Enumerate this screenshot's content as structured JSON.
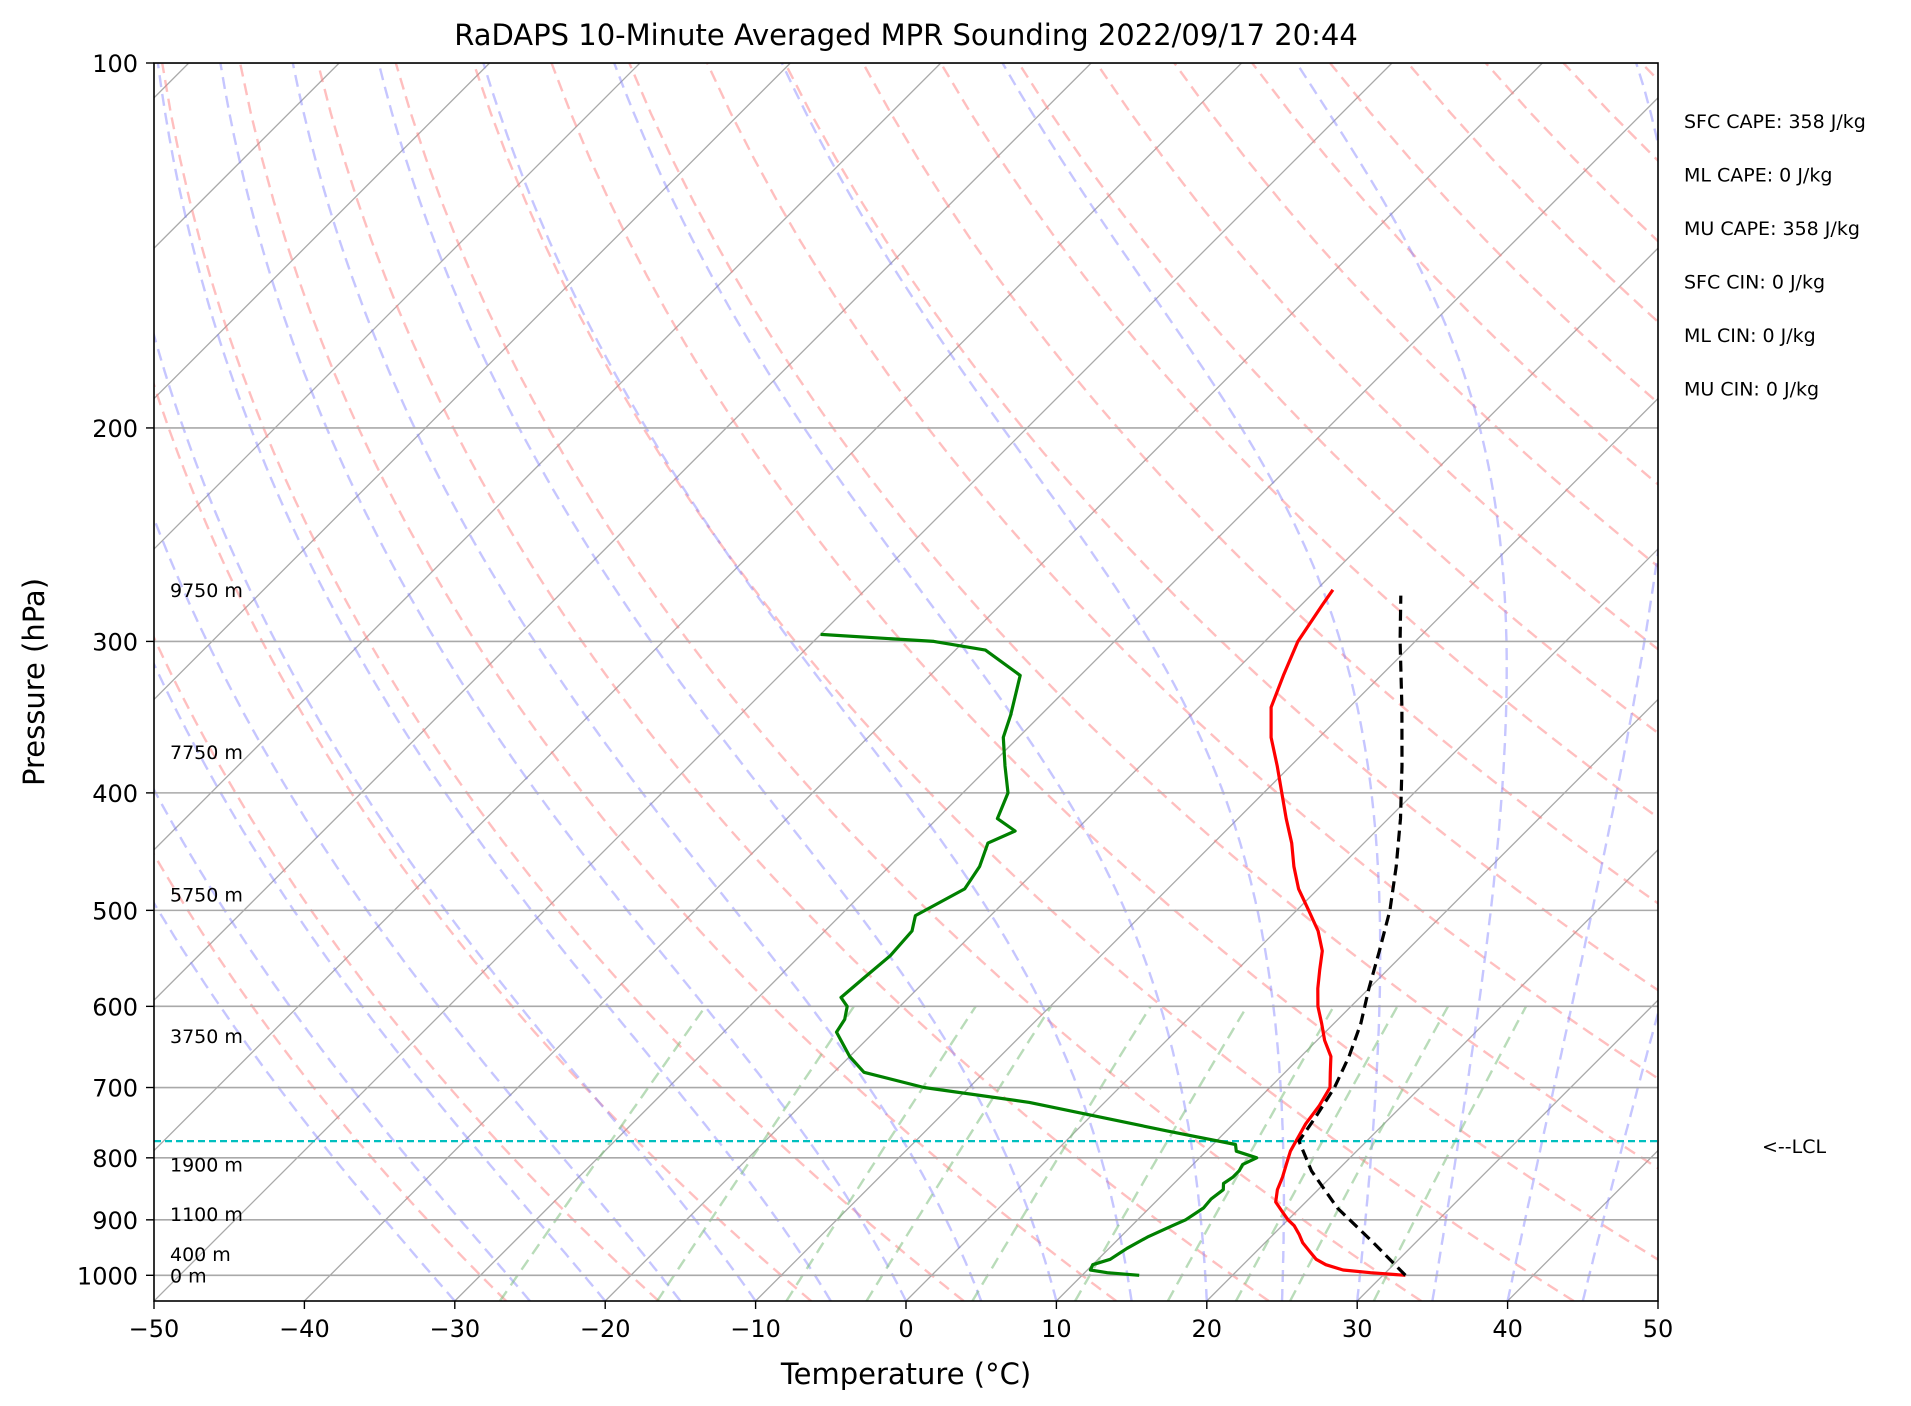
{
  "chart_data": {
    "type": "line",
    "subtype": "skew-t log-p",
    "title": "RaDAPS 10-Minute Averaged MPR Sounding 2022/09/17 20:44",
    "xlabel": "Temperature (°C)",
    "ylabel": "Pressure (hPa)",
    "xlim": [
      -50,
      50
    ],
    "ylim": [
      1050,
      100
    ],
    "yscale": "log",
    "x_ticks": [
      -50,
      -40,
      -30,
      -20,
      -10,
      0,
      10,
      20,
      30,
      40,
      50
    ],
    "y_ticks": [
      100,
      200,
      300,
      400,
      500,
      600,
      700,
      800,
      900,
      1000
    ],
    "grid": true,
    "series": [
      {
        "color": "#ff0000",
        "style": "solid",
        "points": [
          [
            1000,
            31.5
          ],
          [
            995,
            29.0
          ],
          [
            990,
            27.0
          ],
          [
            980,
            25.5
          ],
          [
            970,
            24.5
          ],
          [
            955,
            23.5
          ],
          [
            940,
            22.5
          ],
          [
            925,
            21.7
          ],
          [
            910,
            20.8
          ],
          [
            900,
            20.0
          ],
          [
            885,
            19.0
          ],
          [
            870,
            18.0
          ],
          [
            850,
            17.3
          ],
          [
            830,
            16.8
          ],
          [
            810,
            16.2
          ],
          [
            790,
            15.6
          ],
          [
            775,
            15.3
          ],
          [
            750,
            14.8
          ],
          [
            725,
            14.5
          ],
          [
            700,
            14.0
          ],
          [
            680,
            13.0
          ],
          [
            660,
            12.0
          ],
          [
            640,
            10.5
          ],
          [
            620,
            9.2
          ],
          [
            600,
            7.8
          ],
          [
            580,
            6.6
          ],
          [
            560,
            5.5
          ],
          [
            540,
            4.4
          ],
          [
            520,
            2.8
          ],
          [
            500,
            0.8
          ],
          [
            480,
            -1.3
          ],
          [
            460,
            -3.1
          ],
          [
            440,
            -4.8
          ],
          [
            420,
            -6.8
          ],
          [
            400,
            -8.8
          ],
          [
            380,
            -10.9
          ],
          [
            360,
            -13.2
          ],
          [
            340,
            -15.2
          ],
          [
            320,
            -16.5
          ],
          [
            300,
            -17.8
          ],
          [
            280,
            -18.6
          ],
          [
            272,
            -18.9
          ]
        ]
      },
      {
        "color": "#008000",
        "style": "solid",
        "points": [
          [
            1000,
            13.8
          ],
          [
            995,
            11.5
          ],
          [
            990,
            10.2
          ],
          [
            980,
            10.0
          ],
          [
            970,
            10.8
          ],
          [
            960,
            11.0
          ],
          [
            950,
            11.2
          ],
          [
            930,
            11.8
          ],
          [
            910,
            12.7
          ],
          [
            900,
            13.2
          ],
          [
            880,
            13.6
          ],
          [
            865,
            13.5
          ],
          [
            850,
            13.7
          ],
          [
            840,
            13.3
          ],
          [
            830,
            13.5
          ],
          [
            820,
            13.5
          ],
          [
            810,
            13.3
          ],
          [
            800,
            13.8
          ],
          [
            790,
            12.0
          ],
          [
            780,
            11.5
          ],
          [
            760,
            6.0
          ],
          [
            720,
            -5.0
          ],
          [
            700,
            -13.0
          ],
          [
            680,
            -18.0
          ],
          [
            660,
            -20.0
          ],
          [
            630,
            -22.5
          ],
          [
            615,
            -22.8
          ],
          [
            600,
            -23.5
          ],
          [
            590,
            -24.5
          ],
          [
            570,
            -24.3
          ],
          [
            545,
            -24.0
          ],
          [
            520,
            -24.2
          ],
          [
            505,
            -25.0
          ],
          [
            480,
            -23.5
          ],
          [
            460,
            -24.0
          ],
          [
            440,
            -25.0
          ],
          [
            430,
            -24.0
          ],
          [
            420,
            -26.0
          ],
          [
            400,
            -27.0
          ],
          [
            380,
            -29.0
          ],
          [
            360,
            -31.0
          ],
          [
            345,
            -32.0
          ],
          [
            320,
            -34.0
          ],
          [
            305,
            -38.0
          ],
          [
            300,
            -42.0
          ],
          [
            296,
            -50.0
          ]
        ]
      },
      {
        "color": "#000000",
        "style": "dashed",
        "points": [
          [
            1000,
            31.5
          ],
          [
            940,
            27.2
          ],
          [
            880,
            22.5
          ],
          [
            820,
            18.3
          ],
          [
            775,
            15.5
          ],
          [
            740,
            15.0
          ],
          [
            700,
            14.3
          ],
          [
            660,
            13.2
          ],
          [
            620,
            11.8
          ],
          [
            580,
            10.0
          ],
          [
            540,
            8.2
          ],
          [
            500,
            6.2
          ],
          [
            460,
            3.7
          ],
          [
            420,
            0.8
          ],
          [
            380,
            -2.6
          ],
          [
            340,
            -6.5
          ],
          [
            300,
            -11.0
          ],
          [
            275,
            -14.0
          ]
        ]
      }
    ],
    "lcl_pressure": 775,
    "lcl_color": "#00bfbf",
    "lcl_label": "<--LCL",
    "altitude_labels": [
      {
        "p": 1000,
        "text": "0 m"
      },
      {
        "p": 960,
        "text": "400 m"
      },
      {
        "p": 890,
        "text": "1100 m"
      },
      {
        "p": 810,
        "text": "1900 m"
      },
      {
        "p": 635,
        "text": "3750 m"
      },
      {
        "p": 485,
        "text": "5750 m"
      },
      {
        "p": 370,
        "text": "7750 m"
      },
      {
        "p": 272,
        "text": "9750 m"
      }
    ],
    "stats": [
      "SFC CAPE: 358 J/kg",
      "ML CAPE: 0 J/kg",
      "MU CAPE: 358 J/kg",
      "SFC CIN: 0 J/kg",
      "ML CIN: 0 J/kg",
      "MU CIN: 0 J/kg"
    ],
    "background_lines": {
      "isotherm_color": "#a9a9a9",
      "dry_adiabat_color": "#ff8080",
      "moist_adiabat_color": "#8080ff",
      "mixing_ratio_color": "#80c080"
    }
  }
}
